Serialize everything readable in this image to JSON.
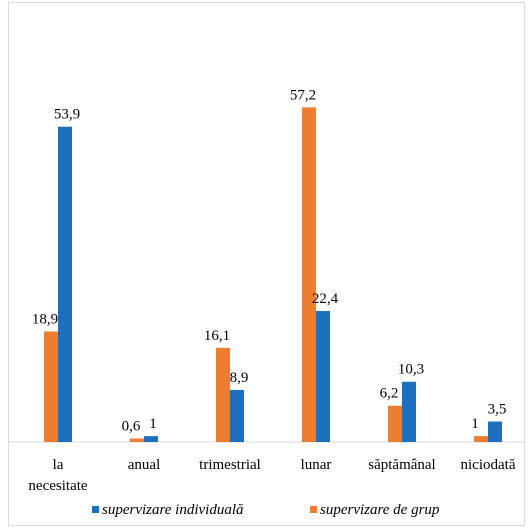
{
  "chart_data": {
    "type": "bar",
    "categories": [
      "la necesitate",
      "anual",
      "trimestrial",
      "lunar",
      "săptămânal",
      "niciodată"
    ],
    "category_lines": [
      [
        "la",
        "necesitate"
      ],
      [
        "anual"
      ],
      [
        "trimestrial"
      ],
      [
        "lunar"
      ],
      [
        "săptămânal"
      ],
      [
        "niciodată"
      ]
    ],
    "series": [
      {
        "name": "supervizare de grup",
        "color": "#ED7D31",
        "values": [
          18.9,
          0.6,
          16.1,
          57.2,
          6.2,
          1
        ],
        "labels": [
          "18,9",
          "0,6",
          "16,1",
          "57,2",
          "6,2",
          "1"
        ]
      },
      {
        "name": "supervizare individuală",
        "color": "#1F6FBF",
        "values": [
          53.9,
          1,
          8.9,
          22.4,
          10.3,
          3.5
        ],
        "labels": [
          "53,9",
          "1",
          "8,9",
          "22,4",
          "10,3",
          "3,5"
        ]
      }
    ],
    "legend_order": [
      "supervizare individuală",
      "supervizare de grup"
    ],
    "legend_position": "bottom",
    "ylim": [
      0,
      60
    ],
    "grid": false,
    "title": "",
    "xlabel": "",
    "ylabel": ""
  }
}
